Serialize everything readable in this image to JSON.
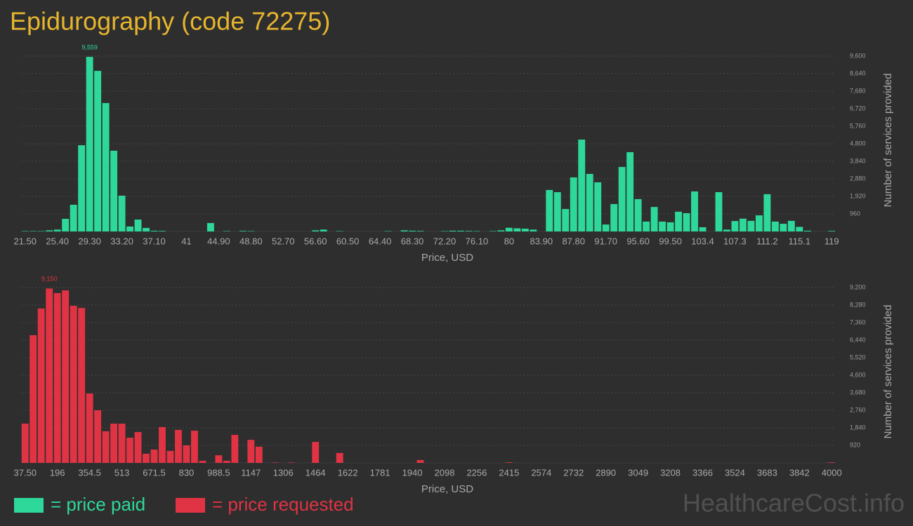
{
  "title": "Epidurography (code 72275)",
  "watermark": "HealthcareCost.info",
  "chart_data": [
    {
      "type": "bar",
      "categories": [
        "21.50",
        null,
        null,
        null,
        "25.40",
        null,
        null,
        null,
        "29.30",
        null,
        null,
        null,
        "33.20",
        null,
        null,
        null,
        "37.10",
        null,
        null,
        null,
        "41",
        null,
        null,
        null,
        "44.90",
        null,
        null,
        null,
        "48.80",
        null,
        null,
        null,
        "52.70",
        null,
        null,
        null,
        "56.60",
        null,
        null,
        null,
        "60.50",
        null,
        null,
        null,
        "64.40",
        null,
        null,
        null,
        "68.30",
        null,
        null,
        null,
        "72.20",
        null,
        null,
        null,
        "76.10",
        null,
        null,
        null,
        "80",
        null,
        null,
        null,
        "83.90",
        null,
        null,
        null,
        "87.80",
        null,
        null,
        null,
        "91.70",
        null,
        null,
        null,
        "95.60",
        null,
        null,
        null,
        "99.50",
        null,
        null,
        null,
        "103.4",
        null,
        null,
        null,
        "107.3",
        null,
        null,
        null,
        "111.2",
        null,
        null,
        null,
        "115.1",
        null,
        null,
        null,
        "119"
      ],
      "series": [
        {
          "name": "= price paid",
          "color": "#2ed89a",
          "values": [
            20,
            20,
            20,
            60,
            100,
            690,
            1460,
            4720,
            9559,
            8790,
            7030,
            4420,
            1960,
            270,
            650,
            190,
            40,
            30,
            0,
            0,
            0,
            0,
            0,
            460,
            0,
            20,
            0,
            30,
            20,
            0,
            0,
            0,
            0,
            0,
            0,
            0,
            60,
            100,
            0,
            20,
            0,
            0,
            0,
            0,
            0,
            20,
            0,
            60,
            40,
            30,
            0,
            0,
            20,
            40,
            40,
            30,
            20,
            0,
            20,
            60,
            200,
            170,
            150,
            100,
            0,
            2270,
            2150,
            1230,
            2960,
            5030,
            3150,
            2690,
            380,
            1500,
            3530,
            4340,
            1770,
            540,
            1340,
            540,
            500,
            1080,
            1000,
            2190,
            230,
            0,
            2150,
            100,
            570,
            700,
            580,
            880,
            2040,
            540,
            420,
            580,
            250,
            40,
            0,
            0,
            30
          ],
          "value_labels": [
            null,
            null,
            null,
            null,
            null,
            null,
            null,
            null,
            "9,559",
            null,
            null,
            null,
            null,
            null,
            null,
            null,
            null,
            null,
            null,
            null,
            null,
            null,
            null,
            null,
            null,
            null,
            null,
            null,
            null,
            null,
            null,
            null,
            null,
            null,
            null,
            null,
            null,
            null,
            null,
            null,
            null,
            null,
            null,
            null,
            null,
            null,
            null,
            null,
            null,
            null,
            null,
            null,
            null,
            null,
            null,
            null,
            null,
            null,
            null,
            null,
            null,
            null,
            null,
            null,
            null,
            null,
            null,
            null,
            null,
            null,
            null,
            null,
            null,
            null,
            null,
            null,
            null,
            null,
            null,
            null,
            null,
            null,
            null,
            null,
            null,
            null,
            null,
            null,
            null,
            null,
            null,
            null,
            null,
            null,
            null,
            null,
            null,
            null,
            null,
            null,
            null
          ]
        }
      ],
      "ylim": [
        0,
        9600
      ],
      "yticks": [
        960,
        {
          "value": 1920,
          "label": "1,920"
        },
        {
          "value": 2880,
          "label": "2,880"
        },
        {
          "value": 3840,
          "label": "3,840"
        },
        {
          "value": 4800,
          "label": "4,800"
        },
        {
          "value": 5760,
          "label": "5,760"
        },
        {
          "value": 6720,
          "label": "6,720"
        },
        {
          "value": 7680,
          "label": "7,680"
        },
        {
          "value": 8640,
          "label": "8,640"
        },
        {
          "value": 9600,
          "label": "9,600"
        }
      ],
      "xlabel": "Price, USD",
      "ylabel": "Number of services provided",
      "grid": true
    },
    {
      "type": "bar",
      "categories": [
        "37.50",
        null,
        null,
        null,
        "196",
        null,
        null,
        null,
        "354.5",
        null,
        null,
        null,
        "513",
        null,
        null,
        null,
        "671.5",
        null,
        null,
        null,
        "830",
        null,
        null,
        null,
        "988.5",
        null,
        null,
        null,
        "1147",
        null,
        null,
        null,
        "1306",
        null,
        null,
        null,
        "1464",
        null,
        null,
        null,
        "1622",
        null,
        null,
        null,
        "1781",
        null,
        null,
        null,
        "1940",
        null,
        null,
        null,
        "2098",
        null,
        null,
        null,
        "2256",
        null,
        null,
        null,
        "2415",
        null,
        null,
        null,
        "2574",
        null,
        null,
        null,
        "2732",
        null,
        null,
        null,
        "2890",
        null,
        null,
        null,
        "3049",
        null,
        null,
        null,
        "3208",
        null,
        null,
        null,
        "3366",
        null,
        null,
        null,
        "3524",
        null,
        null,
        null,
        "3683",
        null,
        null,
        null,
        "3842",
        null,
        null,
        null,
        "4000"
      ],
      "series": [
        {
          "name": "= price requested",
          "color": "#e03344",
          "values": [
            2060,
            6700,
            8100,
            9150,
            8910,
            9050,
            8240,
            8130,
            3640,
            2760,
            1660,
            2060,
            2060,
            1320,
            1620,
            480,
            700,
            1880,
            630,
            1730,
            920,
            1690,
            110,
            0,
            400,
            110,
            1470,
            0,
            1210,
            850,
            0,
            20,
            0,
            20,
            0,
            0,
            1100,
            0,
            0,
            520,
            0,
            0,
            0,
            0,
            0,
            0,
            0,
            0,
            0,
            150,
            0,
            0,
            0,
            0,
            0,
            0,
            0,
            0,
            0,
            0,
            30,
            0,
            0,
            0,
            0,
            0,
            0,
            0,
            0,
            0,
            0,
            0,
            0,
            0,
            0,
            0,
            0,
            0,
            0,
            0,
            0,
            0,
            0,
            0,
            0,
            0,
            0,
            0,
            0,
            0,
            0,
            0,
            0,
            0,
            0,
            0,
            0,
            0,
            0,
            0,
            30
          ],
          "value_labels": [
            null,
            null,
            null,
            "9,150",
            null,
            null,
            null,
            null,
            null,
            null,
            null,
            null,
            null,
            null,
            null,
            null,
            null,
            null,
            null,
            null,
            null,
            null,
            null,
            null,
            null,
            null,
            null,
            null,
            null,
            null,
            null,
            null,
            null,
            null,
            null,
            null,
            null,
            null,
            null,
            null,
            null,
            null,
            null,
            null,
            null,
            null,
            null,
            null,
            null,
            null,
            null,
            null,
            null,
            null,
            null,
            null,
            null,
            null,
            null,
            null,
            null,
            null,
            null,
            null,
            null,
            null,
            null,
            null,
            null,
            null,
            null,
            null,
            null,
            null,
            null,
            null,
            null,
            null,
            null,
            null,
            null,
            null,
            null,
            null,
            null,
            null,
            null,
            null,
            null,
            null,
            null,
            null,
            null,
            null,
            null,
            null,
            null,
            null,
            null,
            null,
            null
          ]
        }
      ],
      "ylim": [
        0,
        9200
      ],
      "yticks": [
        920,
        {
          "value": 1840,
          "label": "1,840"
        },
        {
          "value": 2760,
          "label": "2,760"
        },
        {
          "value": 3680,
          "label": "3,680"
        },
        {
          "value": 4600,
          "label": "4,600"
        },
        {
          "value": 5520,
          "label": "5,520"
        },
        {
          "value": 6440,
          "label": "6,440"
        },
        {
          "value": 7360,
          "label": "7,360"
        },
        {
          "value": 8280,
          "label": "8,280"
        },
        {
          "value": 9200,
          "label": "9,200"
        }
      ],
      "xlabel": "Price, USD",
      "ylabel": "Number of services provided",
      "grid": true
    }
  ]
}
